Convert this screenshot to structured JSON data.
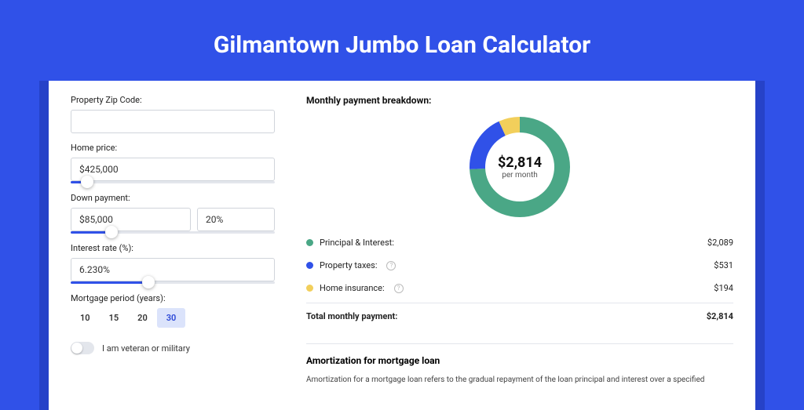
{
  "page": {
    "title": "Gilmantown Jumbo Loan Calculator",
    "bg_color": "#3051e8",
    "shadow_color": "#2642c8"
  },
  "form": {
    "zip": {
      "label": "Property Zip Code:",
      "value": ""
    },
    "home_price": {
      "label": "Home price:",
      "value": "$425,000",
      "slider_pct": 8
    },
    "down_payment": {
      "label": "Down payment:",
      "value": "$85,000",
      "pct": "20%",
      "slider_pct": 20
    },
    "interest": {
      "label": "Interest rate (%):",
      "value": "6.230%",
      "slider_pct": 38
    },
    "period": {
      "label": "Mortgage period (years):",
      "options": [
        "10",
        "15",
        "20",
        "30"
      ],
      "active": "30"
    },
    "veteran": {
      "label": "I am veteran or military",
      "checked": false
    }
  },
  "breakdown": {
    "heading": "Monthly payment breakdown:",
    "donut": {
      "type": "pie",
      "center_value": "$2,814",
      "center_sub": "per month",
      "ring_width": 20,
      "slices": [
        {
          "name": "principal_interest",
          "pct": 74.2,
          "color": "#4aa786"
        },
        {
          "name": "property_taxes",
          "pct": 18.9,
          "color": "#3051e8"
        },
        {
          "name": "home_insurance",
          "pct": 6.9,
          "color": "#f2cf5b"
        }
      ]
    },
    "legend": [
      {
        "label": "Principal & Interest:",
        "value": "$2,089",
        "color": "#4aa786",
        "info": false
      },
      {
        "label": "Property taxes:",
        "value": "$531",
        "color": "#3051e8",
        "info": true
      },
      {
        "label": "Home insurance:",
        "value": "$194",
        "color": "#f2cf5b",
        "info": true
      }
    ],
    "total": {
      "label": "Total monthly payment:",
      "value": "$2,814"
    }
  },
  "amortization": {
    "heading": "Amortization for mortgage loan",
    "text": "Amortization for a mortgage loan refers to the gradual repayment of the loan principal and interest over a specified"
  }
}
